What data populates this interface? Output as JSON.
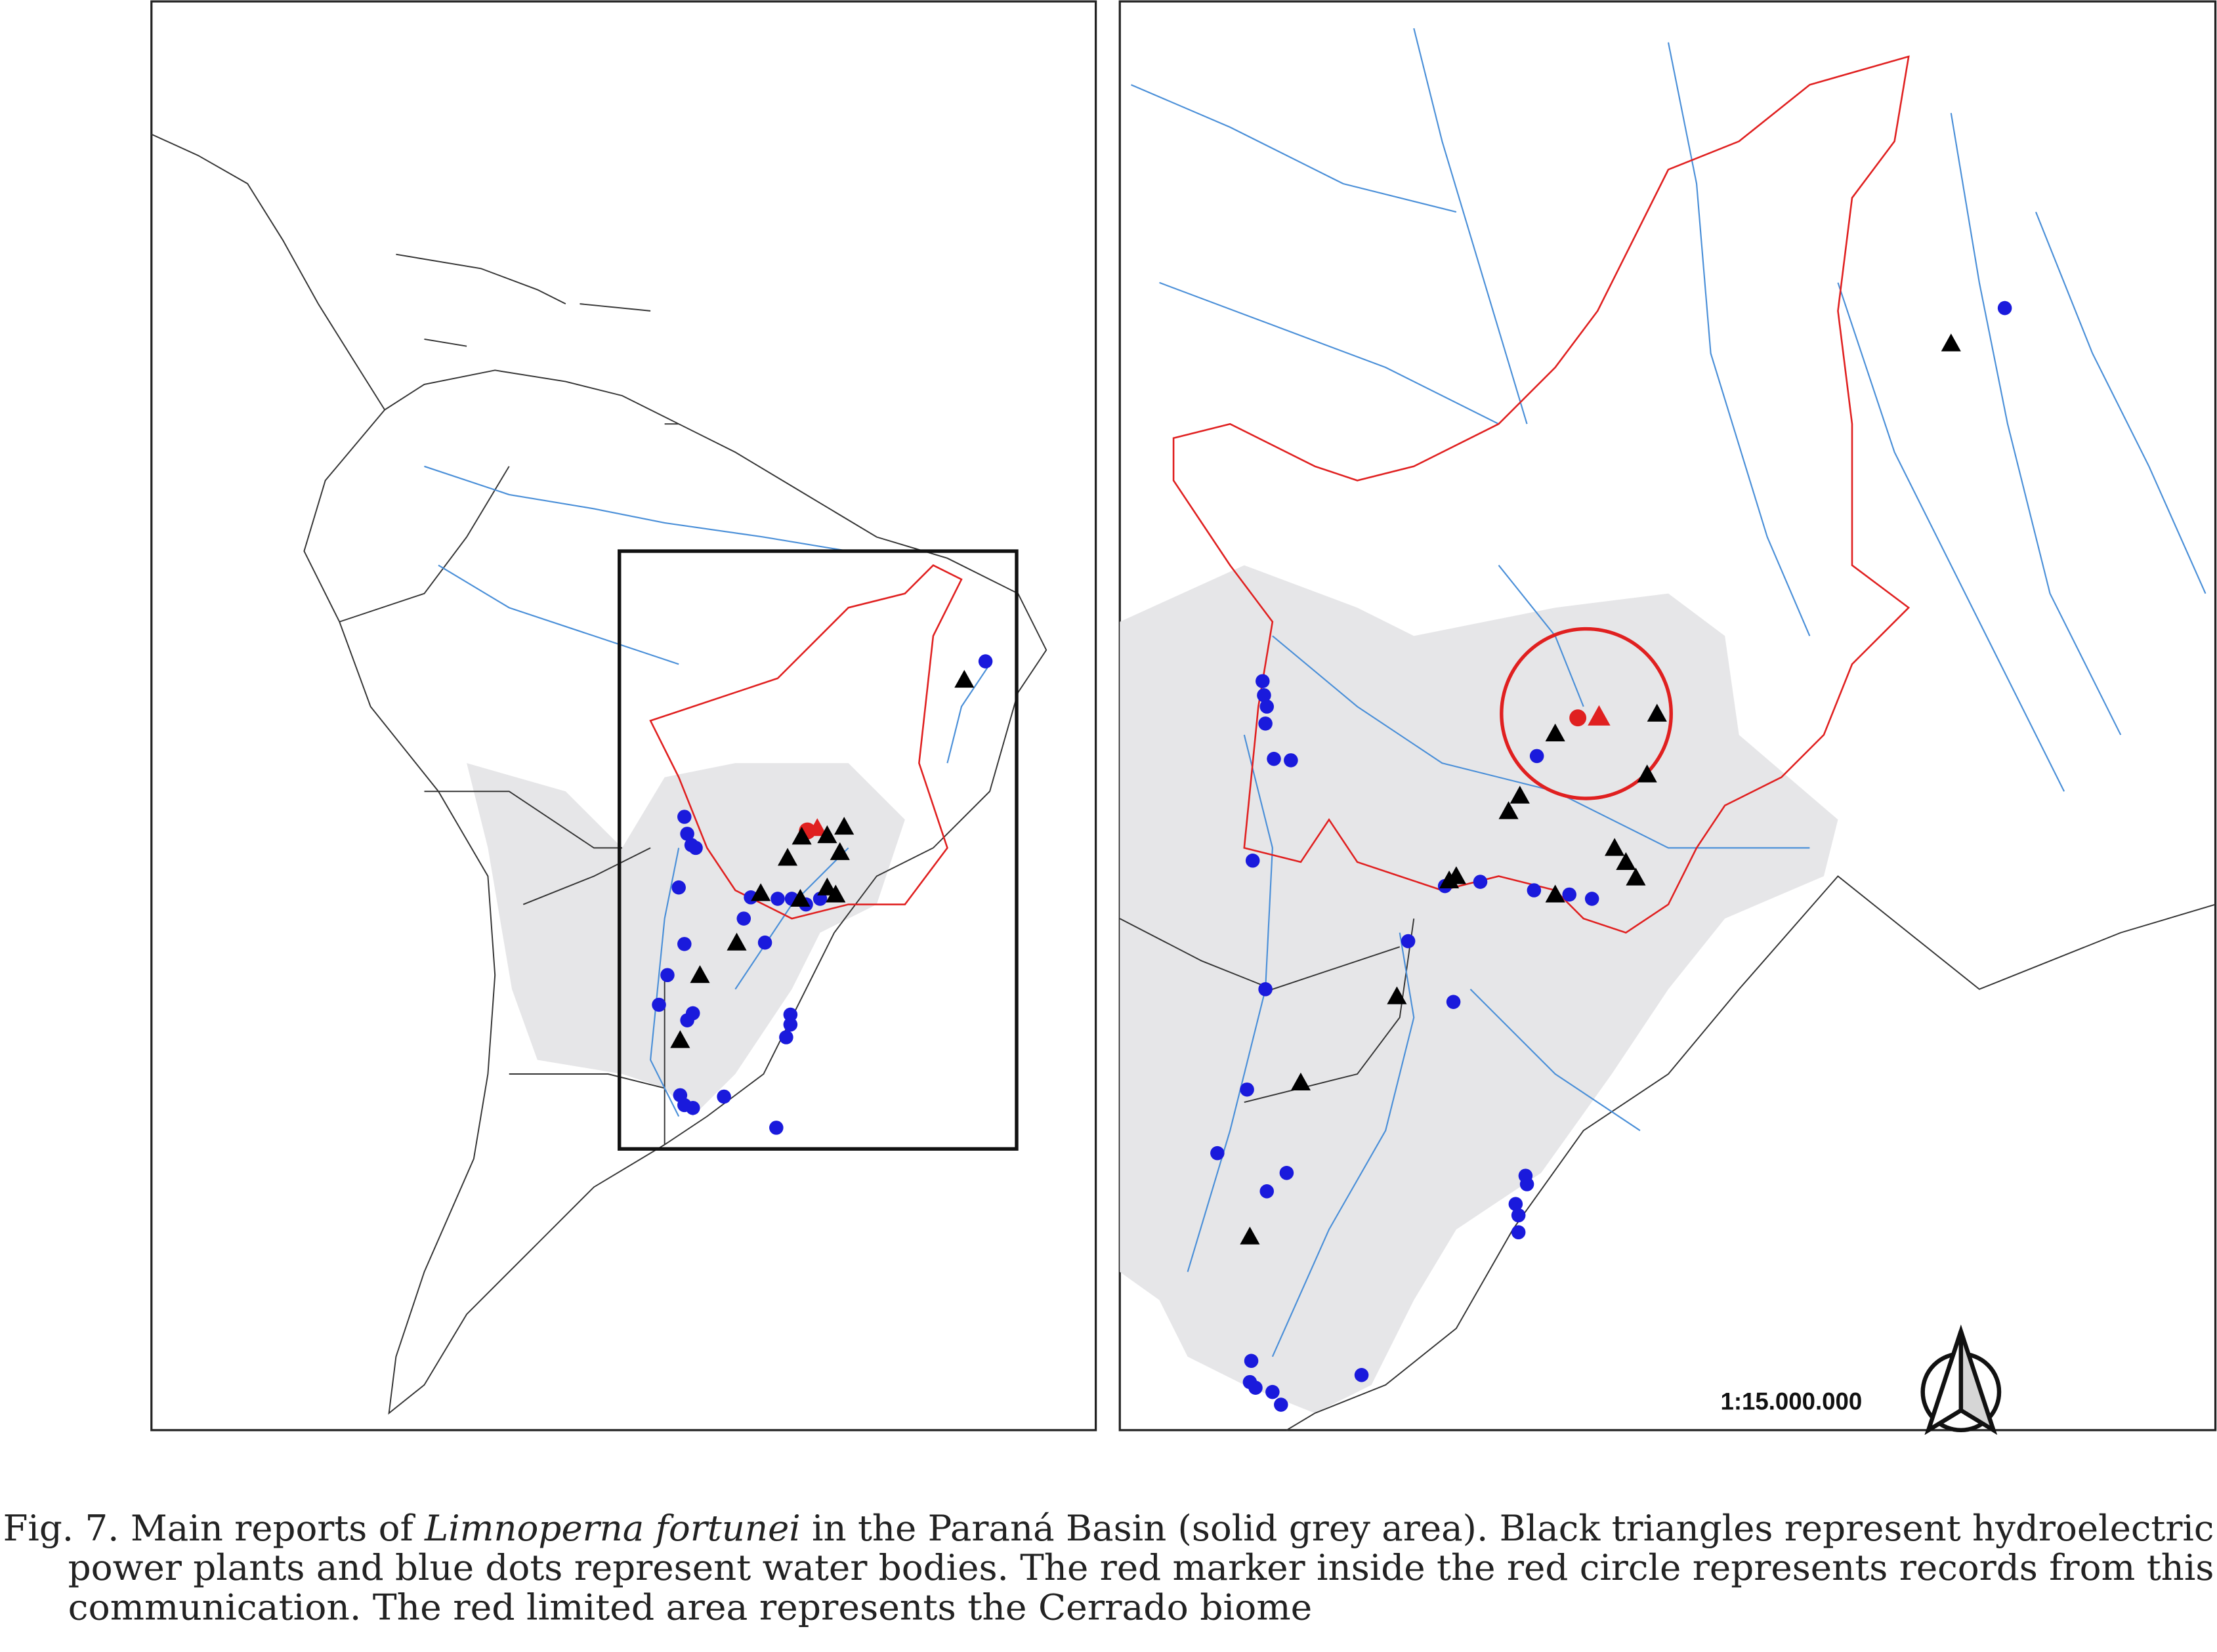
{
  "caption": {
    "line1": {
      "prefix": "Fig. 7. Main reports of ",
      "species": "Limnoperna fortunei",
      "suffix": " in the Paraná Basin (solid grey area). Black triangles represent hydroelectric"
    },
    "line2": "power plants and blue dots represent water bodies. The red marker inside the red circle represents records from this",
    "line3": "communication. The red limited area represents the Cerrado biome"
  },
  "scale": "1:15.000.000"
}
